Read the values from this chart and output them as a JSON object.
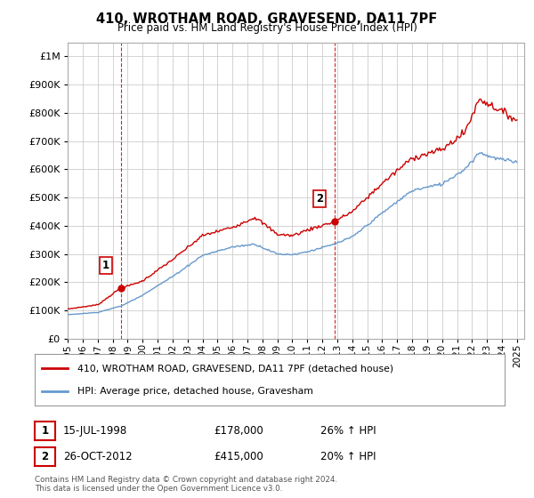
{
  "title": "410, WROTHAM ROAD, GRAVESEND, DA11 7PF",
  "subtitle": "Price paid vs. HM Land Registry's House Price Index (HPI)",
  "ytick_values": [
    0,
    100000,
    200000,
    300000,
    400000,
    500000,
    600000,
    700000,
    800000,
    900000,
    1000000
  ],
  "ylim": [
    0,
    1050000
  ],
  "xlim_start": 1995.0,
  "xlim_end": 2025.5,
  "sale1_x": 1998.54,
  "sale1_y": 178000,
  "sale1_label": "1",
  "sale1_date": "15-JUL-1998",
  "sale1_price": "£178,000",
  "sale1_hpi": "26% ↑ HPI",
  "sale2_x": 2012.82,
  "sale2_y": 415000,
  "sale2_label": "2",
  "sale2_date": "26-OCT-2012",
  "sale2_price": "£415,000",
  "sale2_hpi": "20% ↑ HPI",
  "line_color_property": "#cc0000",
  "line_color_hpi": "#6699cc",
  "vline_color": "#cc0000",
  "background_color": "#ffffff",
  "grid_color": "#cccccc",
  "legend_label_property": "410, WROTHAM ROAD, GRAVESEND, DA11 7PF (detached house)",
  "legend_label_hpi": "HPI: Average price, detached house, Gravesham",
  "footnote": "Contains HM Land Registry data © Crown copyright and database right 2024.\nThis data is licensed under the Open Government Licence v3.0.",
  "xtick_years": [
    1995,
    1996,
    1997,
    1998,
    1999,
    2000,
    2001,
    2002,
    2003,
    2004,
    2005,
    2006,
    2007,
    2008,
    2009,
    2010,
    2011,
    2012,
    2013,
    2014,
    2015,
    2016,
    2017,
    2018,
    2019,
    2020,
    2021,
    2022,
    2023,
    2024,
    2025
  ],
  "prop_anchors": [
    [
      1995.0,
      105000
    ],
    [
      1997.0,
      120000
    ],
    [
      1998.54,
      178000
    ],
    [
      2000.0,
      205000
    ],
    [
      2002.0,
      280000
    ],
    [
      2004.0,
      365000
    ],
    [
      2006.0,
      395000
    ],
    [
      2007.5,
      430000
    ],
    [
      2009.0,
      370000
    ],
    [
      2010.0,
      365000
    ],
    [
      2011.0,
      385000
    ],
    [
      2012.82,
      415000
    ],
    [
      2014.0,
      450000
    ],
    [
      2016.0,
      550000
    ],
    [
      2018.0,
      640000
    ],
    [
      2020.0,
      670000
    ],
    [
      2021.5,
      730000
    ],
    [
      2022.5,
      850000
    ],
    [
      2023.5,
      820000
    ],
    [
      2024.5,
      790000
    ],
    [
      2025.0,
      775000
    ]
  ],
  "hpi_anchors": [
    [
      1995.0,
      85000
    ],
    [
      1997.0,
      93000
    ],
    [
      1998.54,
      115000
    ],
    [
      2000.0,
      155000
    ],
    [
      2002.0,
      220000
    ],
    [
      2004.0,
      295000
    ],
    [
      2006.0,
      325000
    ],
    [
      2007.5,
      335000
    ],
    [
      2009.0,
      300000
    ],
    [
      2010.0,
      298000
    ],
    [
      2011.0,
      308000
    ],
    [
      2012.82,
      335000
    ],
    [
      2014.0,
      360000
    ],
    [
      2016.0,
      445000
    ],
    [
      2018.0,
      525000
    ],
    [
      2020.0,
      548000
    ],
    [
      2021.5,
      600000
    ],
    [
      2022.5,
      660000
    ],
    [
      2023.5,
      640000
    ],
    [
      2024.5,
      630000
    ],
    [
      2025.0,
      625000
    ]
  ]
}
